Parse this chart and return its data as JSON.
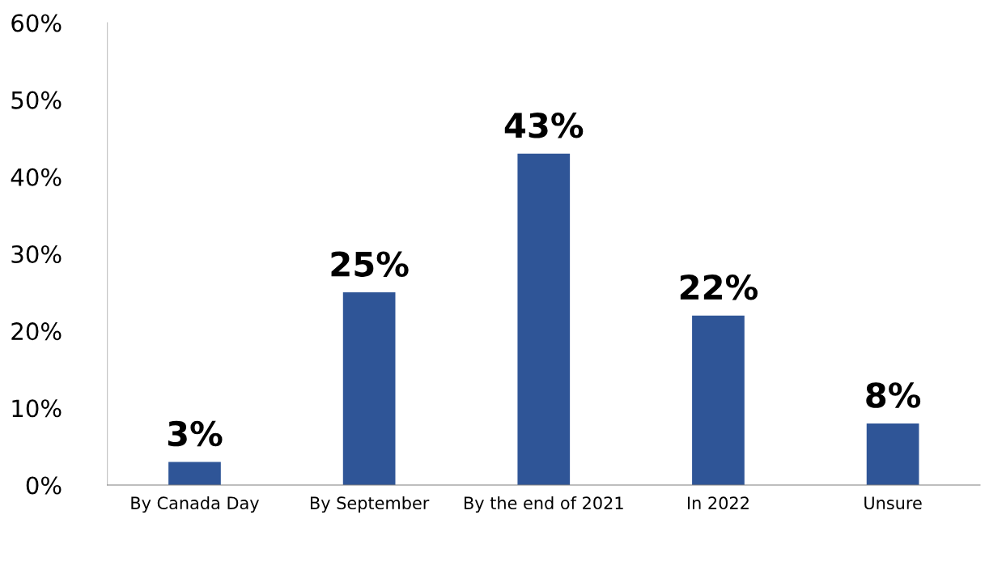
{
  "chart_data": {
    "type": "bar",
    "categories": [
      "By Canada Day",
      "By September",
      "By the end of 2021",
      "In 2022",
      "Unsure"
    ],
    "values": [
      3,
      25,
      43,
      22,
      8
    ],
    "value_labels": [
      "3%",
      "25%",
      "43%",
      "22%",
      "8%"
    ],
    "color": "#2f5597",
    "ylim": [
      0,
      60
    ],
    "yticks": [
      {
        "value": 0,
        "label": "0%"
      },
      {
        "value": 10,
        "label": "10%"
      },
      {
        "value": 20,
        "label": "20%"
      },
      {
        "value": 30,
        "label": "30%"
      },
      {
        "value": 40,
        "label": "40%"
      },
      {
        "value": 50,
        "label": "50%"
      },
      {
        "value": 60,
        "label": "60%"
      }
    ],
    "grid": false,
    "legend": false
  }
}
